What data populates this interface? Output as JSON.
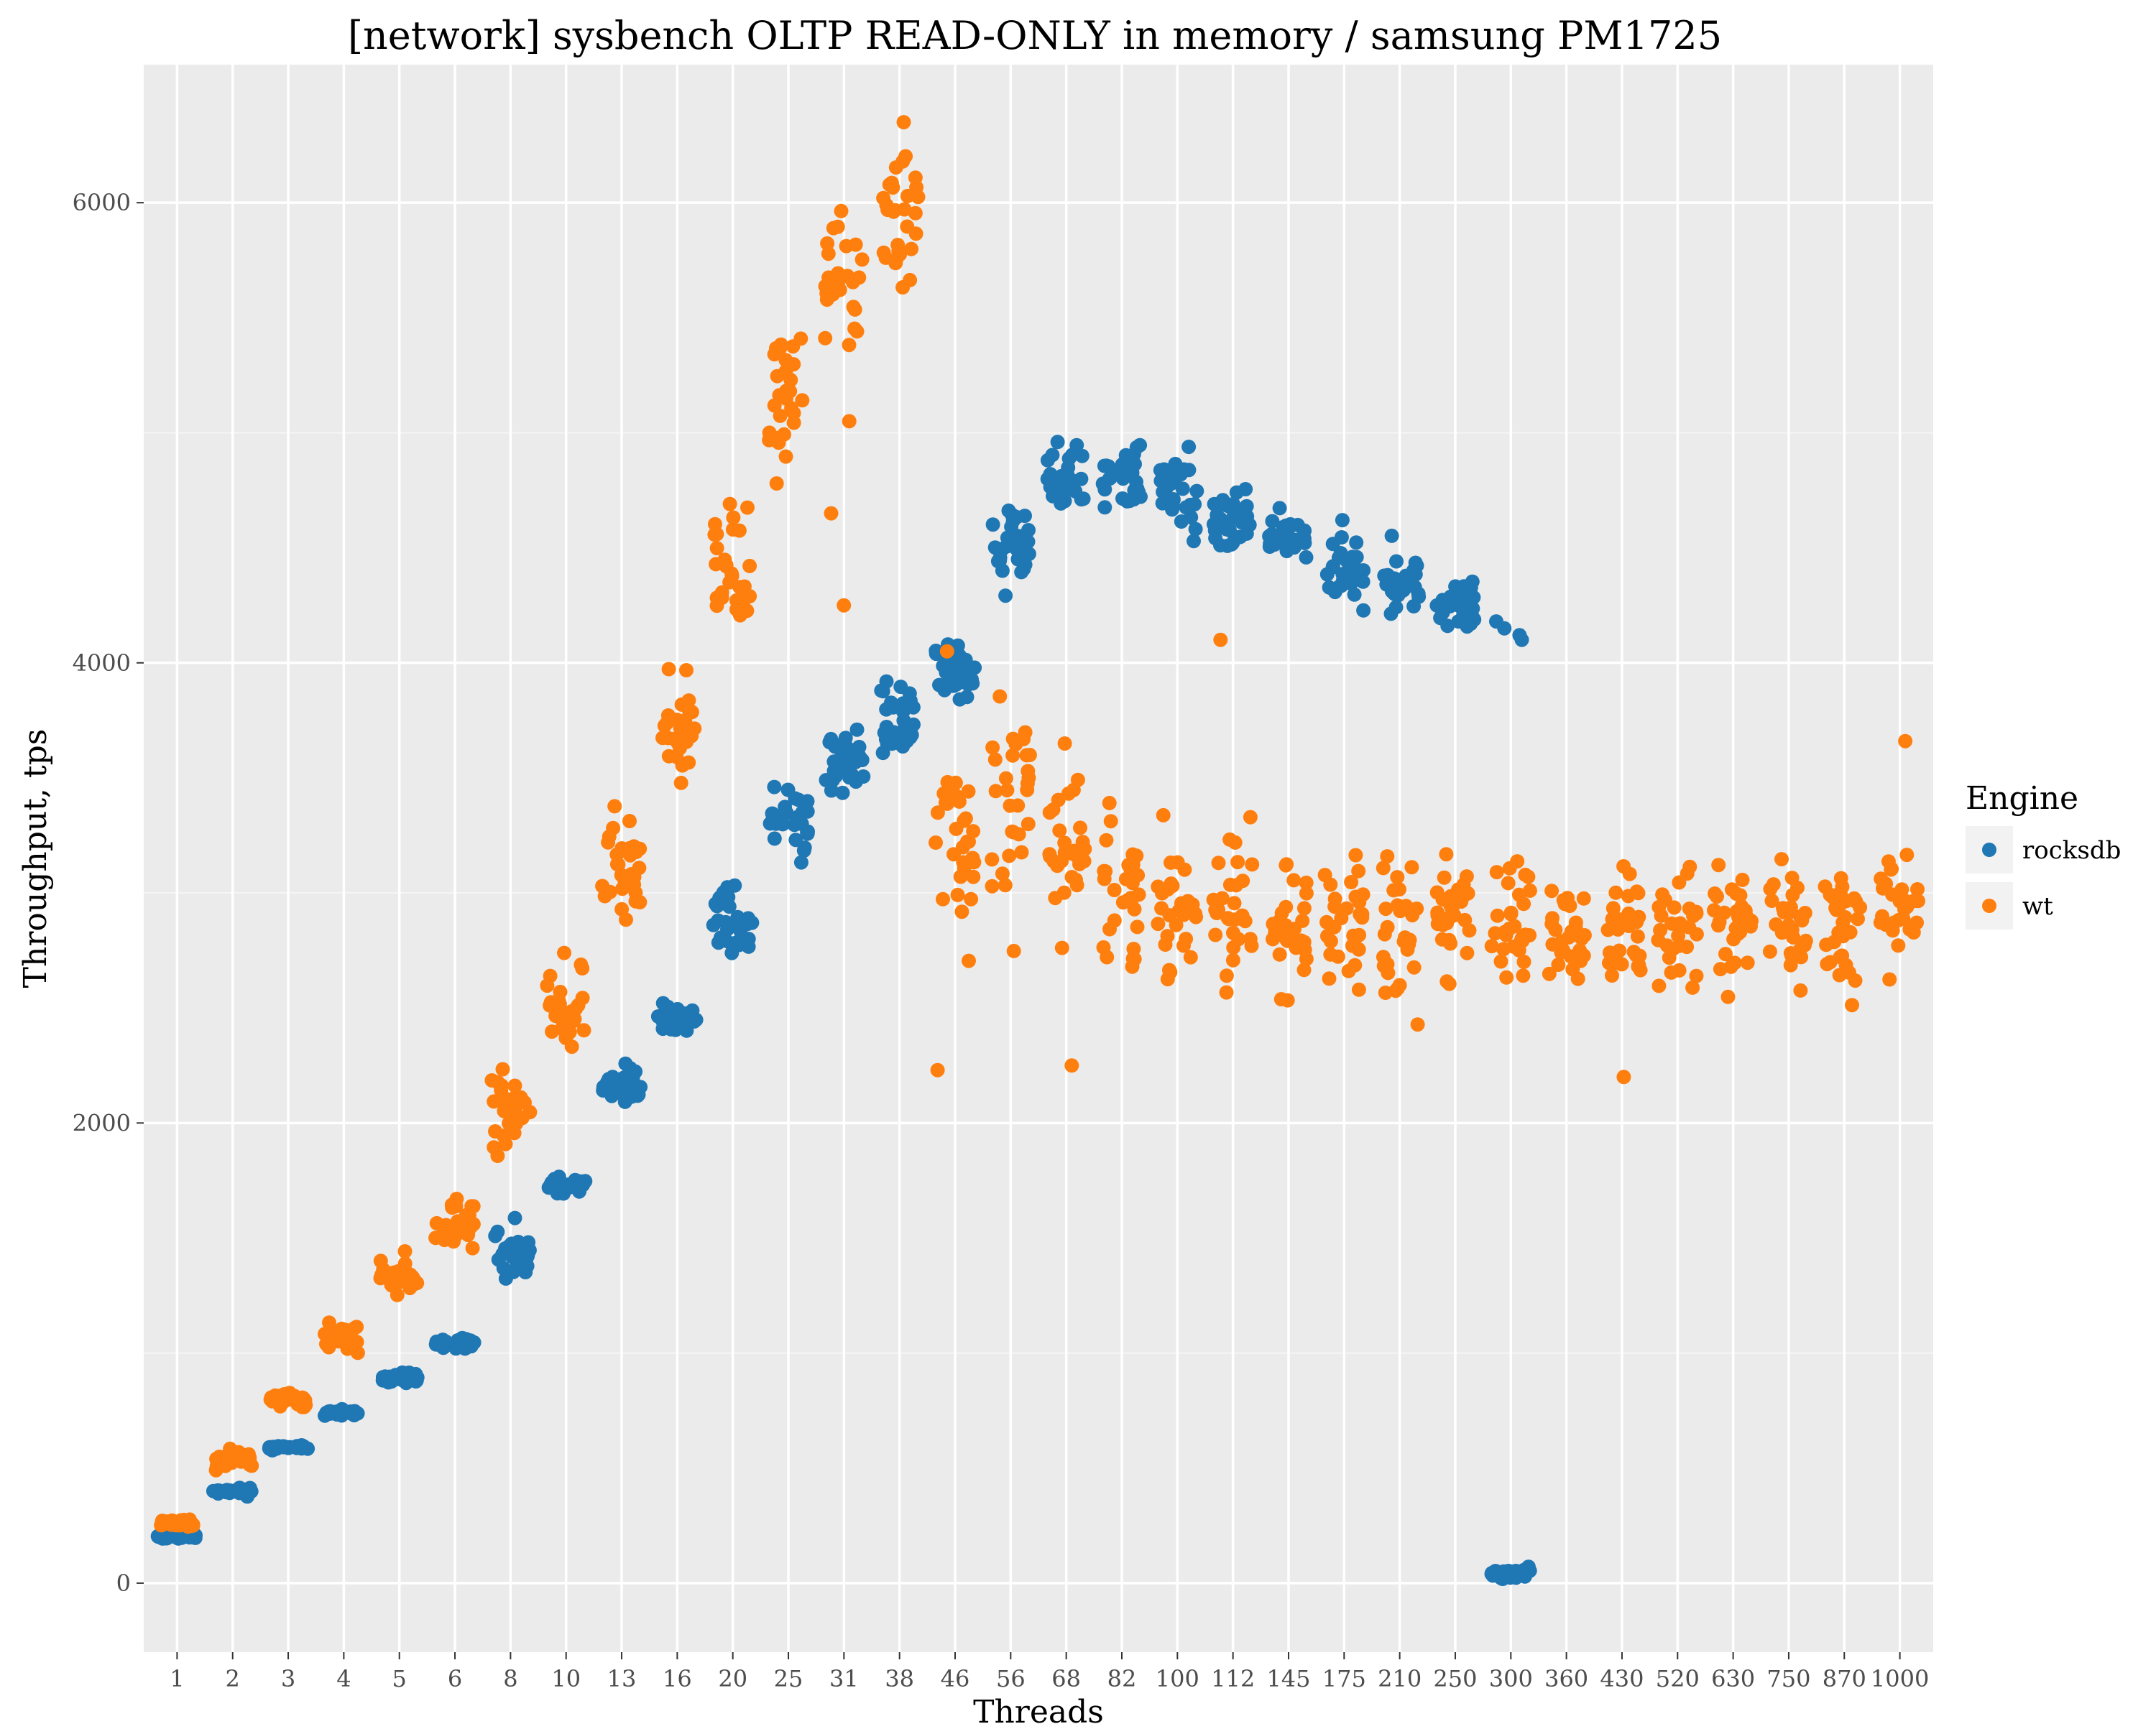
{
  "chart_data": {
    "type": "scatter",
    "title": "[network] sysbench OLTP READ-ONLY in memory / samsung PM1725",
    "xlabel": "Threads",
    "ylabel": "Throughput, tps",
    "x_axis_kind": "categorical",
    "categories": [
      "1",
      "2",
      "3",
      "4",
      "5",
      "6",
      "8",
      "10",
      "13",
      "16",
      "20",
      "25",
      "31",
      "38",
      "46",
      "56",
      "68",
      "82",
      "100",
      "112",
      "145",
      "175",
      "210",
      "250",
      "300",
      "360",
      "430",
      "520",
      "630",
      "750",
      "870",
      "1000"
    ],
    "ylim": [
      -300,
      6600
    ],
    "yticks": [
      0,
      2000,
      4000,
      6000
    ],
    "grid": true,
    "legend": {
      "title": "Engine",
      "placement": "right"
    },
    "series": [
      {
        "name": "rocksdb",
        "color": "#1f77b4",
        "points_per_category": 30,
        "jitter": 0.7,
        "summary": [
          {
            "threads": "1",
            "center": 200,
            "spread": 20
          },
          {
            "threads": "2",
            "center": 400,
            "spread": 30
          },
          {
            "threads": "3",
            "center": 590,
            "spread": 20
          },
          {
            "threads": "4",
            "center": 740,
            "spread": 20
          },
          {
            "threads": "5",
            "center": 890,
            "spread": 40
          },
          {
            "threads": "6",
            "center": 1040,
            "spread": 40
          },
          {
            "threads": "8",
            "center": 1440,
            "spread": 200
          },
          {
            "threads": "10",
            "center": 1730,
            "spread": 60
          },
          {
            "threads": "13",
            "center": 2150,
            "spread": 150
          },
          {
            "threads": "16",
            "center": 2460,
            "spread": 100
          },
          {
            "threads": "20",
            "center": 2880,
            "spread": 250
          },
          {
            "threads": "25",
            "center": 3320,
            "spread": 250
          },
          {
            "threads": "31",
            "center": 3580,
            "spread": 300
          },
          {
            "threads": "38",
            "center": 3750,
            "spread": 300
          },
          {
            "threads": "46",
            "center": 3950,
            "spread": 250
          },
          {
            "threads": "56",
            "center": 4550,
            "spread": 400
          },
          {
            "threads": "68",
            "center": 4820,
            "spread": 250
          },
          {
            "threads": "82",
            "center": 4800,
            "spread": 250
          },
          {
            "threads": "100",
            "center": 4750,
            "spread": 300
          },
          {
            "threads": "112",
            "center": 4650,
            "spread": 300
          },
          {
            "threads": "145",
            "center": 4550,
            "spread": 200
          },
          {
            "threads": "175",
            "center": 4450,
            "spread": 250
          },
          {
            "threads": "210",
            "center": 4350,
            "spread": 250
          },
          {
            "threads": "250",
            "center": 4250,
            "spread": 200
          },
          {
            "threads": "300",
            "center": 40,
            "spread": 40
          }
        ],
        "extra_points": [
          {
            "threads": "300",
            "tps": 4150
          },
          {
            "threads": "300",
            "tps": 4100
          },
          {
            "threads": "300",
            "tps": 4180
          },
          {
            "threads": "300",
            "tps": 4120
          }
        ]
      },
      {
        "name": "wt",
        "color": "#ff7f0e",
        "points_per_category": 30,
        "jitter": 0.7,
        "summary": [
          {
            "threads": "1",
            "center": 260,
            "spread": 30
          },
          {
            "threads": "2",
            "center": 540,
            "spread": 60
          },
          {
            "threads": "3",
            "center": 800,
            "spread": 80
          },
          {
            "threads": "4",
            "center": 1070,
            "spread": 120
          },
          {
            "threads": "5",
            "center": 1320,
            "spread": 140
          },
          {
            "threads": "6",
            "center": 1550,
            "spread": 180
          },
          {
            "threads": "8",
            "center": 2050,
            "spread": 350
          },
          {
            "threads": "10",
            "center": 2500,
            "spread": 350
          },
          {
            "threads": "13",
            "center": 3100,
            "spread": 400
          },
          {
            "threads": "16",
            "center": 3700,
            "spread": 400
          },
          {
            "threads": "20",
            "center": 4400,
            "spread": 450
          },
          {
            "threads": "25",
            "center": 5150,
            "spread": 500
          },
          {
            "threads": "31",
            "center": 5650,
            "spread": 500
          },
          {
            "threads": "38",
            "center": 5950,
            "spread": 500
          },
          {
            "threads": "46",
            "center": 3250,
            "spread": 700
          },
          {
            "threads": "56",
            "center": 3400,
            "spread": 700
          },
          {
            "threads": "68",
            "center": 3150,
            "spread": 700
          },
          {
            "threads": "82",
            "center": 3000,
            "spread": 650
          },
          {
            "threads": "100",
            "center": 2900,
            "spread": 600
          },
          {
            "threads": "112",
            "center": 2950,
            "spread": 600
          },
          {
            "threads": "145",
            "center": 2850,
            "spread": 600
          },
          {
            "threads": "175",
            "center": 2850,
            "spread": 550
          },
          {
            "threads": "210",
            "center": 2800,
            "spread": 550
          },
          {
            "threads": "250",
            "center": 2850,
            "spread": 500
          },
          {
            "threads": "300",
            "center": 2850,
            "spread": 500
          },
          {
            "threads": "360",
            "center": 2850,
            "spread": 500
          },
          {
            "threads": "430",
            "center": 2850,
            "spread": 500
          },
          {
            "threads": "520",
            "center": 2850,
            "spread": 450
          },
          {
            "threads": "630",
            "center": 2850,
            "spread": 450
          },
          {
            "threads": "750",
            "center": 2850,
            "spread": 450
          },
          {
            "threads": "870",
            "center": 2850,
            "spread": 450
          },
          {
            "threads": "1000",
            "center": 2900,
            "spread": 450
          }
        ],
        "extra_points": [
          {
            "threads": "31",
            "tps": 4650
          },
          {
            "threads": "31",
            "tps": 4250
          },
          {
            "threads": "31",
            "tps": 5050
          },
          {
            "threads": "38",
            "tps": 6350
          },
          {
            "threads": "46",
            "tps": 2230
          },
          {
            "threads": "46",
            "tps": 4050
          },
          {
            "threads": "68",
            "tps": 2250
          },
          {
            "threads": "112",
            "tps": 4100
          },
          {
            "threads": "430",
            "tps": 2200
          },
          {
            "threads": "1000",
            "tps": 3660
          }
        ]
      }
    ]
  },
  "legend": {
    "title": "Engine",
    "items": [
      {
        "label": "rocksdb",
        "color": "#1f77b4"
      },
      {
        "label": "wt",
        "color": "#ff7f0e"
      }
    ]
  },
  "colors": {
    "panel_bg": "#ebebeb",
    "grid": "#ffffff",
    "rocksdb": "#1f77b4",
    "wt": "#ff7f0e"
  }
}
